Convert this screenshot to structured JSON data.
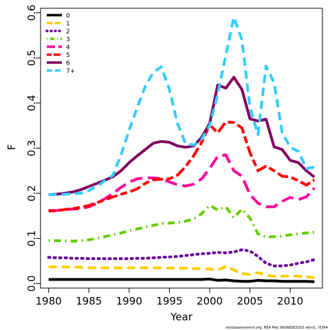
{
  "chart_data": {
    "type": "line",
    "title": "",
    "xlabel": "Year",
    "ylabel": "F",
    "xlim": [
      1979,
      2014
    ],
    "ylim": [
      -0.01,
      0.61
    ],
    "grid": false,
    "legend_position": "top-left",
    "x_ticks": [
      1980,
      1985,
      1990,
      1995,
      2000,
      2005,
      2010
    ],
    "y_ticks": [
      0.0,
      0.1,
      0.2,
      0.3,
      0.4,
      0.5,
      0.6
    ],
    "y_tick_labels": [
      "0.0",
      "0.1",
      "0.2",
      "0.3",
      "0.4",
      "0.5",
      "0.6"
    ],
    "footer": "stockassessment.org, NEA Mac WGWIDE2015 retro1, r5364",
    "x": [
      1980,
      1981,
      1982,
      1983,
      1984,
      1985,
      1986,
      1987,
      1988,
      1989,
      1990,
      1991,
      1992,
      1993,
      1994,
      1995,
      1996,
      1997,
      1998,
      1999,
      2000,
      2001,
      2002,
      2003,
      2004,
      2005,
      2006,
      2007,
      2008,
      2009,
      2010,
      2011,
      2012,
      2013
    ],
    "series": [
      {
        "name": "0",
        "color": "#000000",
        "dash": "solid",
        "values": [
          0.009,
          0.009,
          0.009,
          0.009,
          0.009,
          0.009,
          0.009,
          0.009,
          0.009,
          0.009,
          0.009,
          0.009,
          0.009,
          0.009,
          0.009,
          0.009,
          0.009,
          0.009,
          0.009,
          0.009,
          0.01,
          0.007,
          0.008,
          0.006,
          0.005,
          0.005,
          0.007,
          0.006,
          0.006,
          0.005,
          0.005,
          0.005,
          0.005,
          0.004
        ]
      },
      {
        "name": "1",
        "color": "#ffcc00",
        "dash": "dashed",
        "values": [
          0.037,
          0.037,
          0.037,
          0.036,
          0.036,
          0.035,
          0.035,
          0.035,
          0.035,
          0.035,
          0.035,
          0.035,
          0.035,
          0.035,
          0.035,
          0.034,
          0.034,
          0.034,
          0.033,
          0.033,
          0.032,
          0.03,
          0.038,
          0.03,
          0.022,
          0.02,
          0.024,
          0.019,
          0.016,
          0.016,
          0.017,
          0.016,
          0.015,
          0.013
        ]
      },
      {
        "name": "2",
        "color": "#660099",
        "dash": "dotted",
        "values": [
          0.058,
          0.057,
          0.057,
          0.056,
          0.056,
          0.055,
          0.055,
          0.055,
          0.055,
          0.055,
          0.055,
          0.056,
          0.056,
          0.057,
          0.058,
          0.059,
          0.06,
          0.062,
          0.064,
          0.066,
          0.067,
          0.069,
          0.068,
          0.07,
          0.075,
          0.072,
          0.06,
          0.045,
          0.039,
          0.039,
          0.041,
          0.045,
          0.048,
          0.053
        ]
      },
      {
        "name": "3",
        "color": "#66cc00",
        "dash": "dotdash",
        "values": [
          0.095,
          0.095,
          0.095,
          0.094,
          0.095,
          0.097,
          0.1,
          0.104,
          0.108,
          0.112,
          0.117,
          0.121,
          0.125,
          0.129,
          0.133,
          0.134,
          0.135,
          0.138,
          0.143,
          0.155,
          0.173,
          0.163,
          0.17,
          0.146,
          0.165,
          0.145,
          0.11,
          0.103,
          0.104,
          0.105,
          0.108,
          0.11,
          0.112,
          0.114
        ]
      },
      {
        "name": "4",
        "color": "#ff0099",
        "dash": "longdash",
        "values": [
          0.162,
          0.162,
          0.164,
          0.165,
          0.166,
          0.17,
          0.178,
          0.188,
          0.2,
          0.213,
          0.225,
          0.232,
          0.234,
          0.234,
          0.232,
          0.225,
          0.219,
          0.216,
          0.22,
          0.232,
          0.255,
          0.282,
          0.285,
          0.25,
          0.238,
          0.197,
          0.178,
          0.17,
          0.17,
          0.182,
          0.191,
          0.186,
          0.192,
          0.212
        ]
      },
      {
        "name": "5",
        "color": "#ff0000",
        "dash": "twodash",
        "values": [
          0.161,
          0.161,
          0.164,
          0.166,
          0.169,
          0.173,
          0.179,
          0.186,
          0.192,
          0.198,
          0.203,
          0.21,
          0.222,
          0.23,
          0.231,
          0.232,
          0.24,
          0.259,
          0.283,
          0.313,
          0.352,
          0.334,
          0.358,
          0.357,
          0.345,
          0.29,
          0.25,
          0.26,
          0.25,
          0.238,
          0.236,
          0.228,
          0.218,
          0.23
        ]
      },
      {
        "name": "6",
        "color": "#800060",
        "dash": "solid",
        "values": [
          0.197,
          0.198,
          0.2,
          0.203,
          0.208,
          0.215,
          0.222,
          0.229,
          0.237,
          0.25,
          0.268,
          0.283,
          0.297,
          0.311,
          0.315,
          0.313,
          0.305,
          0.302,
          0.305,
          0.324,
          0.355,
          0.44,
          0.433,
          0.457,
          0.43,
          0.365,
          0.36,
          0.364,
          0.303,
          0.297,
          0.273,
          0.268,
          0.25,
          0.236
        ]
      },
      {
        "name": "7+",
        "color": "#33ccff",
        "dash": "dashed",
        "values": [
          0.197,
          0.197,
          0.198,
          0.199,
          0.2,
          0.206,
          0.215,
          0.228,
          0.24,
          0.285,
          0.34,
          0.39,
          0.437,
          0.468,
          0.48,
          0.43,
          0.355,
          0.31,
          0.307,
          0.32,
          0.35,
          0.42,
          0.505,
          0.59,
          0.54,
          0.39,
          0.33,
          0.482,
          0.445,
          0.335,
          0.302,
          0.293,
          0.255,
          0.258
        ]
      }
    ]
  }
}
